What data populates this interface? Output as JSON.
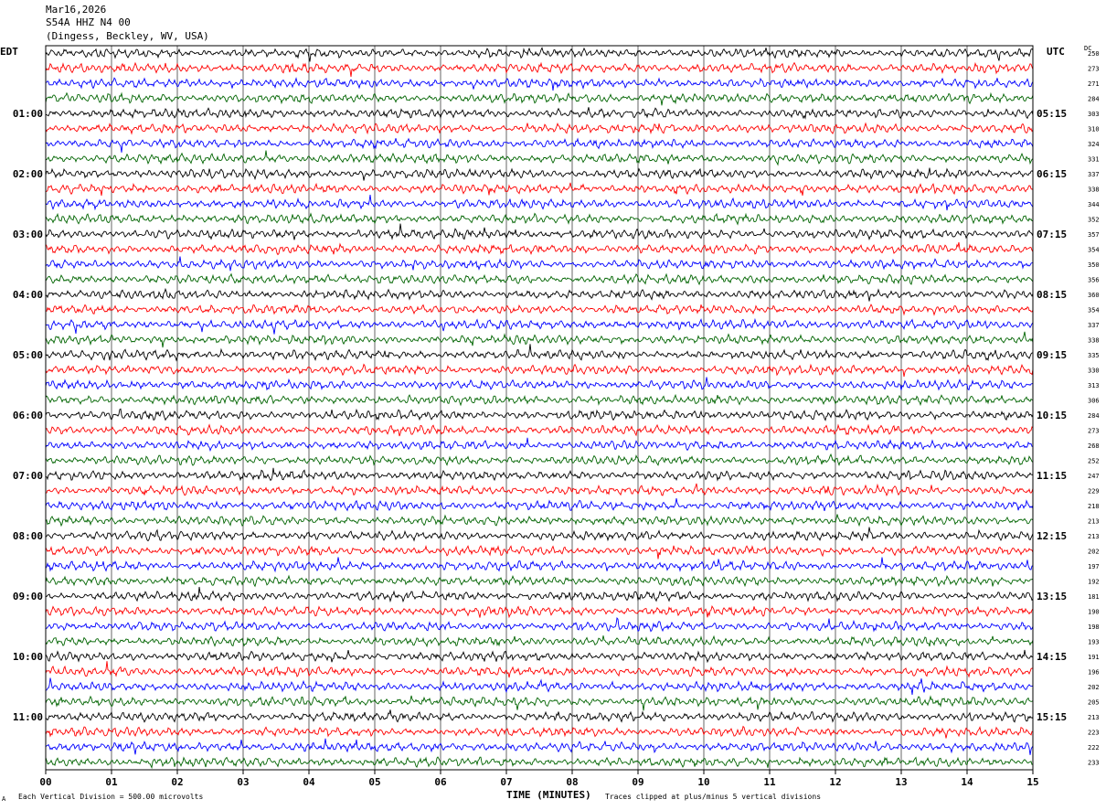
{
  "header": {
    "line1": "Mar16,2026",
    "line2": "S54A HHZ N4 00",
    "line3": "(Dingess, Beckley, WV, USA)"
  },
  "left_timezone": "EDT",
  "right_timezone": "UTC",
  "dc_label": "DC",
  "footer": {
    "scale_note": "Each Vertical Division =  500.00 microvolts",
    "clip_note": "Traces clipped at plus/minus 5 vertical divisions",
    "mark": "A"
  },
  "chart_data": {
    "type": "line",
    "title": "",
    "xlabel": "TIME (MINUTES)",
    "ylabel": "",
    "xlim": [
      0,
      15
    ],
    "x_ticks": [
      "00",
      "01",
      "02",
      "03",
      "04",
      "05",
      "06",
      "07",
      "08",
      "09",
      "10",
      "11",
      "12",
      "13",
      "14",
      "15"
    ],
    "left_hour_labels": [
      "01:00",
      "02:00",
      "03:00",
      "04:00",
      "05:00",
      "06:00",
      "07:00",
      "08:00",
      "09:00",
      "10:00",
      "11:00"
    ],
    "right_hour_labels": [
      "05:15",
      "06:15",
      "07:15",
      "08:15",
      "09:15",
      "10:15",
      "11:15",
      "12:15",
      "13:15",
      "14:15",
      "15:15"
    ],
    "trace_colors": [
      "#000000",
      "#ff0000",
      "#0000ff",
      "#006400"
    ],
    "trace_count": 48,
    "dc_offsets": [
      250,
      273,
      271,
      284,
      303,
      310,
      324,
      331,
      337,
      338,
      344,
      352,
      357,
      354,
      350,
      356,
      360,
      354,
      337,
      338,
      335,
      330,
      313,
      306,
      284,
      273,
      268,
      252,
      247,
      229,
      218,
      213,
      213,
      202,
      197,
      192,
      181,
      190,
      198,
      193,
      191,
      196,
      202,
      205,
      213,
      223,
      222,
      233
    ],
    "grid": true
  }
}
